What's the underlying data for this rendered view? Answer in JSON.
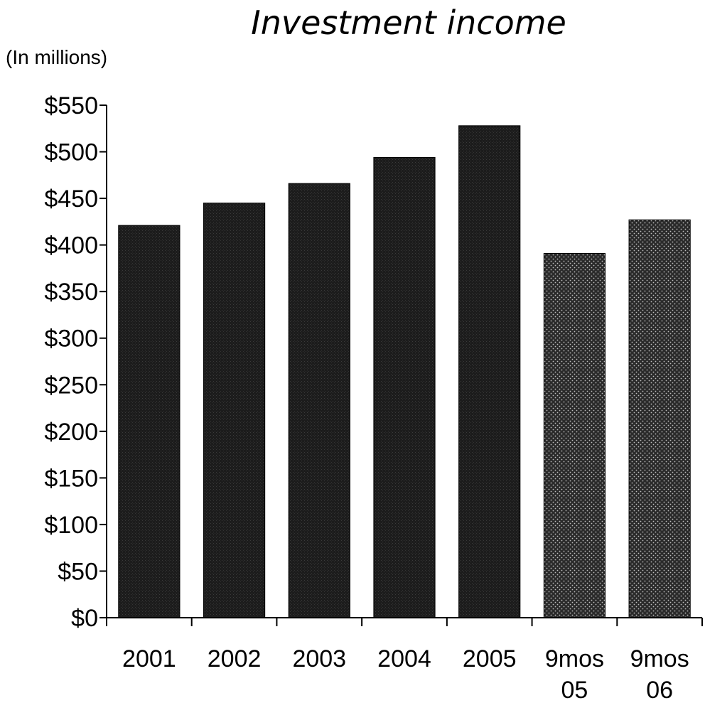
{
  "chart_data": {
    "type": "bar",
    "title": "Investment income",
    "unit_label": "(In millions)",
    "categories": [
      [
        "2001"
      ],
      [
        "2002"
      ],
      [
        "2003"
      ],
      [
        "2004"
      ],
      [
        "2005"
      ],
      [
        "9mos",
        "05"
      ],
      [
        "9mos",
        "06"
      ]
    ],
    "values": [
      421,
      445,
      466,
      494,
      528,
      391,
      427
    ],
    "y_ticks": [
      {
        "value": 0,
        "label": "$0"
      },
      {
        "value": 50,
        "label": "$50"
      },
      {
        "value": 100,
        "label": "$100"
      },
      {
        "value": 150,
        "label": "$150"
      },
      {
        "value": 200,
        "label": "$200"
      },
      {
        "value": 250,
        "label": "$250"
      },
      {
        "value": 300,
        "label": "$300"
      },
      {
        "value": 350,
        "label": "$350"
      },
      {
        "value": 400,
        "label": "$400"
      },
      {
        "value": 450,
        "label": "$450"
      },
      {
        "value": 500,
        "label": "$500"
      },
      {
        "value": 550,
        "label": "$550"
      }
    ],
    "ylim": [
      0,
      550
    ],
    "grid": false,
    "legend": "none",
    "bar_styles": [
      "solid-dark",
      "solid-dark",
      "solid-dark",
      "solid-dark",
      "solid-dark",
      "dotted",
      "dotted"
    ],
    "colors": {
      "solid_bar": "#1c1c1c",
      "dotted_bar_bg": "#2a2a2a",
      "dotted_bar_dot": "#bdbdbd",
      "axis": "#000000",
      "text": "#000000"
    }
  }
}
